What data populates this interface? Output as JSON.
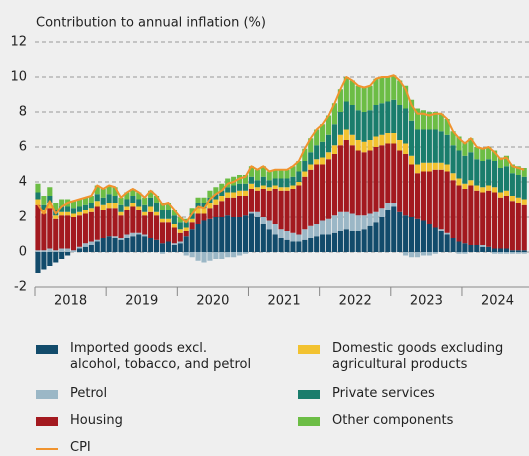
{
  "chart_data": {
    "type": "bar",
    "stacked": true,
    "ylabel": "Contribution to annual inflation (%)",
    "ylim": [
      -2,
      12
    ],
    "yticks": [
      -2,
      0,
      2,
      4,
      6,
      8,
      10,
      12
    ],
    "grid": true,
    "categories": [
      null,
      null,
      null,
      null,
      null,
      null,
      "2018",
      null,
      null,
      null,
      null,
      null,
      null,
      null,
      null,
      null,
      null,
      null,
      "2019",
      null,
      null,
      null,
      null,
      null,
      null,
      null,
      null,
      null,
      null,
      null,
      "2020",
      null,
      null,
      null,
      null,
      null,
      null,
      null,
      null,
      null,
      null,
      null,
      "2021",
      null,
      null,
      null,
      null,
      null,
      null,
      null,
      null,
      null,
      null,
      null,
      "2022",
      null,
      null,
      null,
      null,
      null,
      null,
      null,
      null,
      null,
      null,
      null,
      "2023",
      null,
      null,
      null,
      null,
      null,
      null,
      null,
      null,
      null,
      null,
      null,
      "2024",
      null,
      null,
      null,
      null
    ],
    "series": [
      {
        "name": "Imported goods excl. alcohol, tobacco, and petrol",
        "color": "#124b6b",
        "values": [
          -1.2,
          -1.0,
          -0.8,
          -0.6,
          -0.4,
          -0.2,
          0.0,
          0.2,
          0.3,
          0.4,
          0.6,
          0.8,
          0.9,
          0.8,
          0.7,
          0.8,
          0.9,
          1.0,
          0.9,
          0.8,
          0.7,
          0.5,
          0.6,
          0.4,
          0.5,
          0.9,
          1.3,
          1.6,
          1.8,
          1.9,
          2.0,
          2.0,
          2.1,
          2.0,
          2.0,
          2.1,
          2.2,
          2.0,
          1.6,
          1.3,
          1.0,
          0.8,
          0.7,
          0.6,
          0.6,
          0.7,
          0.8,
          0.9,
          1.0,
          1.0,
          1.1,
          1.2,
          1.3,
          1.2,
          1.2,
          1.3,
          1.5,
          1.7,
          2.0,
          2.4,
          2.6,
          2.3,
          2.1,
          2.0,
          1.9,
          1.8,
          1.6,
          1.4,
          1.2,
          1.0,
          0.8,
          0.6,
          0.5,
          0.4,
          0.4,
          0.3,
          0.3,
          0.2,
          0.2,
          0.2,
          0.1,
          0.1,
          0.1
        ]
      },
      {
        "name": "Petrol",
        "color": "#9bb7c6",
        "values": [
          0.1,
          0.1,
          0.2,
          0.1,
          0.2,
          0.2,
          0.1,
          0.1,
          0.2,
          0.2,
          0.1,
          0.0,
          0.0,
          0.1,
          0.1,
          0.2,
          0.2,
          0.1,
          0.1,
          0.0,
          0.0,
          -0.1,
          0.0,
          0.1,
          0.1,
          -0.2,
          -0.3,
          -0.5,
          -0.6,
          -0.5,
          -0.4,
          -0.4,
          -0.3,
          -0.3,
          -0.2,
          -0.1,
          0.1,
          0.3,
          0.4,
          0.5,
          0.6,
          0.5,
          0.5,
          0.5,
          0.4,
          0.6,
          0.7,
          0.7,
          0.8,
          0.9,
          1.0,
          1.1,
          1.0,
          1.0,
          0.9,
          0.8,
          0.7,
          0.6,
          0.5,
          0.4,
          0.2,
          0.0,
          -0.2,
          -0.3,
          -0.3,
          -0.2,
          -0.2,
          -0.1,
          0.1,
          0.1,
          0.0,
          -0.1,
          -0.1,
          0.0,
          0.0,
          0.1,
          0.0,
          -0.1,
          -0.1,
          -0.1,
          -0.1,
          -0.1,
          -0.1
        ]
      },
      {
        "name": "Housing",
        "color": "#a3191f",
        "values": [
          2.6,
          2.1,
          2.3,
          1.8,
          1.9,
          1.9,
          1.9,
          1.8,
          1.7,
          1.7,
          1.9,
          1.6,
          1.6,
          1.6,
          1.3,
          1.4,
          1.5,
          1.3,
          1.1,
          1.5,
          1.4,
          1.2,
          1.1,
          0.9,
          0.5,
          0.3,
          0.4,
          0.6,
          0.4,
          0.6,
          0.7,
          0.9,
          1.0,
          1.1,
          1.2,
          1.1,
          1.3,
          1.2,
          1.6,
          1.7,
          2.0,
          2.2,
          2.3,
          2.5,
          2.8,
          3.0,
          3.2,
          3.4,
          3.2,
          3.4,
          3.5,
          3.8,
          4.1,
          3.9,
          3.7,
          3.6,
          3.6,
          3.7,
          3.6,
          3.4,
          3.4,
          3.5,
          3.5,
          3.0,
          2.6,
          2.8,
          3.0,
          3.3,
          3.4,
          3.5,
          3.3,
          3.2,
          3.1,
          3.4,
          3.1,
          3.0,
          3.2,
          3.2,
          2.9,
          3.0,
          2.8,
          2.7,
          2.6
        ]
      },
      {
        "name": "Domestic goods excluding agricultural products",
        "color": "#f2c230",
        "values": [
          0.3,
          0.2,
          0.3,
          0.2,
          0.2,
          0.2,
          0.2,
          0.2,
          0.2,
          0.2,
          0.3,
          0.3,
          0.3,
          0.3,
          0.2,
          0.2,
          0.2,
          0.2,
          0.2,
          0.3,
          0.2,
          0.2,
          0.2,
          0.2,
          0.2,
          0.2,
          0.2,
          0.3,
          0.3,
          0.3,
          0.3,
          0.3,
          0.3,
          0.3,
          0.3,
          0.3,
          0.3,
          0.2,
          0.2,
          0.2,
          0.2,
          0.2,
          0.2,
          0.2,
          0.2,
          0.3,
          0.3,
          0.3,
          0.4,
          0.4,
          0.5,
          0.6,
          0.6,
          0.6,
          0.6,
          0.6,
          0.6,
          0.6,
          0.6,
          0.6,
          0.6,
          0.6,
          0.6,
          0.5,
          0.5,
          0.5,
          0.5,
          0.4,
          0.4,
          0.4,
          0.4,
          0.4,
          0.3,
          0.3,
          0.3,
          0.3,
          0.3,
          0.3,
          0.3,
          0.3,
          0.3,
          0.3,
          0.3
        ]
      },
      {
        "name": "Private services",
        "color": "#1a7d6c",
        "values": [
          0.4,
          0.3,
          0.4,
          0.3,
          0.3,
          0.3,
          0.3,
          0.3,
          0.3,
          0.3,
          0.4,
          0.4,
          0.5,
          0.4,
          0.4,
          0.4,
          0.4,
          0.4,
          0.4,
          0.5,
          0.5,
          0.5,
          0.5,
          0.5,
          0.4,
          0.3,
          0.3,
          0.3,
          0.3,
          0.3,
          0.3,
          0.3,
          0.3,
          0.4,
          0.4,
          0.4,
          0.4,
          0.4,
          0.5,
          0.4,
          0.4,
          0.5,
          0.5,
          0.5,
          0.6,
          0.6,
          0.7,
          0.8,
          0.9,
          1.0,
          1.2,
          1.3,
          1.6,
          1.7,
          1.7,
          1.7,
          1.7,
          1.8,
          1.8,
          1.8,
          1.9,
          2.0,
          2.0,
          2.0,
          2.0,
          1.9,
          1.9,
          1.9,
          1.8,
          1.7,
          1.6,
          1.6,
          1.6,
          1.6,
          1.5,
          1.5,
          1.5,
          1.5,
          1.4,
          1.4,
          1.3,
          1.3,
          1.3
        ]
      },
      {
        "name": "Other components",
        "color": "#6cbd45",
        "values": [
          0.5,
          0.5,
          0.5,
          0.4,
          0.4,
          0.4,
          0.4,
          0.4,
          0.4,
          0.4,
          0.5,
          0.5,
          0.5,
          0.5,
          0.4,
          0.4,
          0.4,
          0.4,
          0.4,
          0.4,
          0.4,
          0.4,
          0.4,
          0.3,
          0.3,
          0.2,
          0.3,
          0.3,
          0.3,
          0.4,
          0.4,
          0.4,
          0.5,
          0.5,
          0.5,
          0.5,
          0.6,
          0.6,
          0.6,
          0.5,
          0.5,
          0.5,
          0.5,
          0.6,
          0.6,
          0.7,
          0.8,
          0.9,
          1.0,
          1.1,
          1.2,
          1.3,
          1.4,
          1.4,
          1.4,
          1.4,
          1.4,
          1.5,
          1.5,
          1.4,
          1.4,
          1.4,
          1.3,
          1.2,
          1.2,
          1.1,
          1.0,
          1.0,
          1.0,
          0.9,
          0.8,
          0.8,
          0.8,
          0.8,
          0.7,
          0.7,
          0.7,
          0.6,
          0.6,
          0.6,
          0.5,
          0.5,
          0.5
        ]
      },
      {
        "name": "CPI",
        "color": "#f0932e",
        "type": "line",
        "values": [
          2.7,
          2.2,
          2.9,
          2.2,
          2.6,
          2.8,
          2.9,
          3.0,
          3.1,
          3.2,
          3.8,
          3.6,
          3.8,
          3.7,
          3.1,
          3.4,
          3.6,
          3.4,
          3.1,
          3.5,
          3.2,
          2.7,
          2.8,
          2.4,
          2.0,
          1.7,
          2.2,
          2.6,
          2.5,
          3.0,
          3.3,
          3.5,
          3.9,
          4.0,
          4.2,
          4.3,
          4.9,
          4.7,
          4.9,
          4.6,
          4.7,
          4.7,
          4.7,
          4.9,
          5.2,
          5.9,
          6.5,
          7.0,
          7.3,
          7.8,
          8.5,
          9.3,
          10.0,
          9.8,
          9.5,
          9.4,
          9.5,
          9.9,
          10.0,
          10.0,
          10.1,
          9.8,
          9.3,
          8.4,
          7.9,
          7.9,
          7.8,
          7.9,
          7.9,
          7.6,
          6.9,
          6.5,
          6.2,
          6.5,
          6.0,
          5.9,
          6.0,
          5.7,
          5.3,
          5.4,
          4.9,
          4.8,
          4.7
        ]
      }
    ]
  }
}
